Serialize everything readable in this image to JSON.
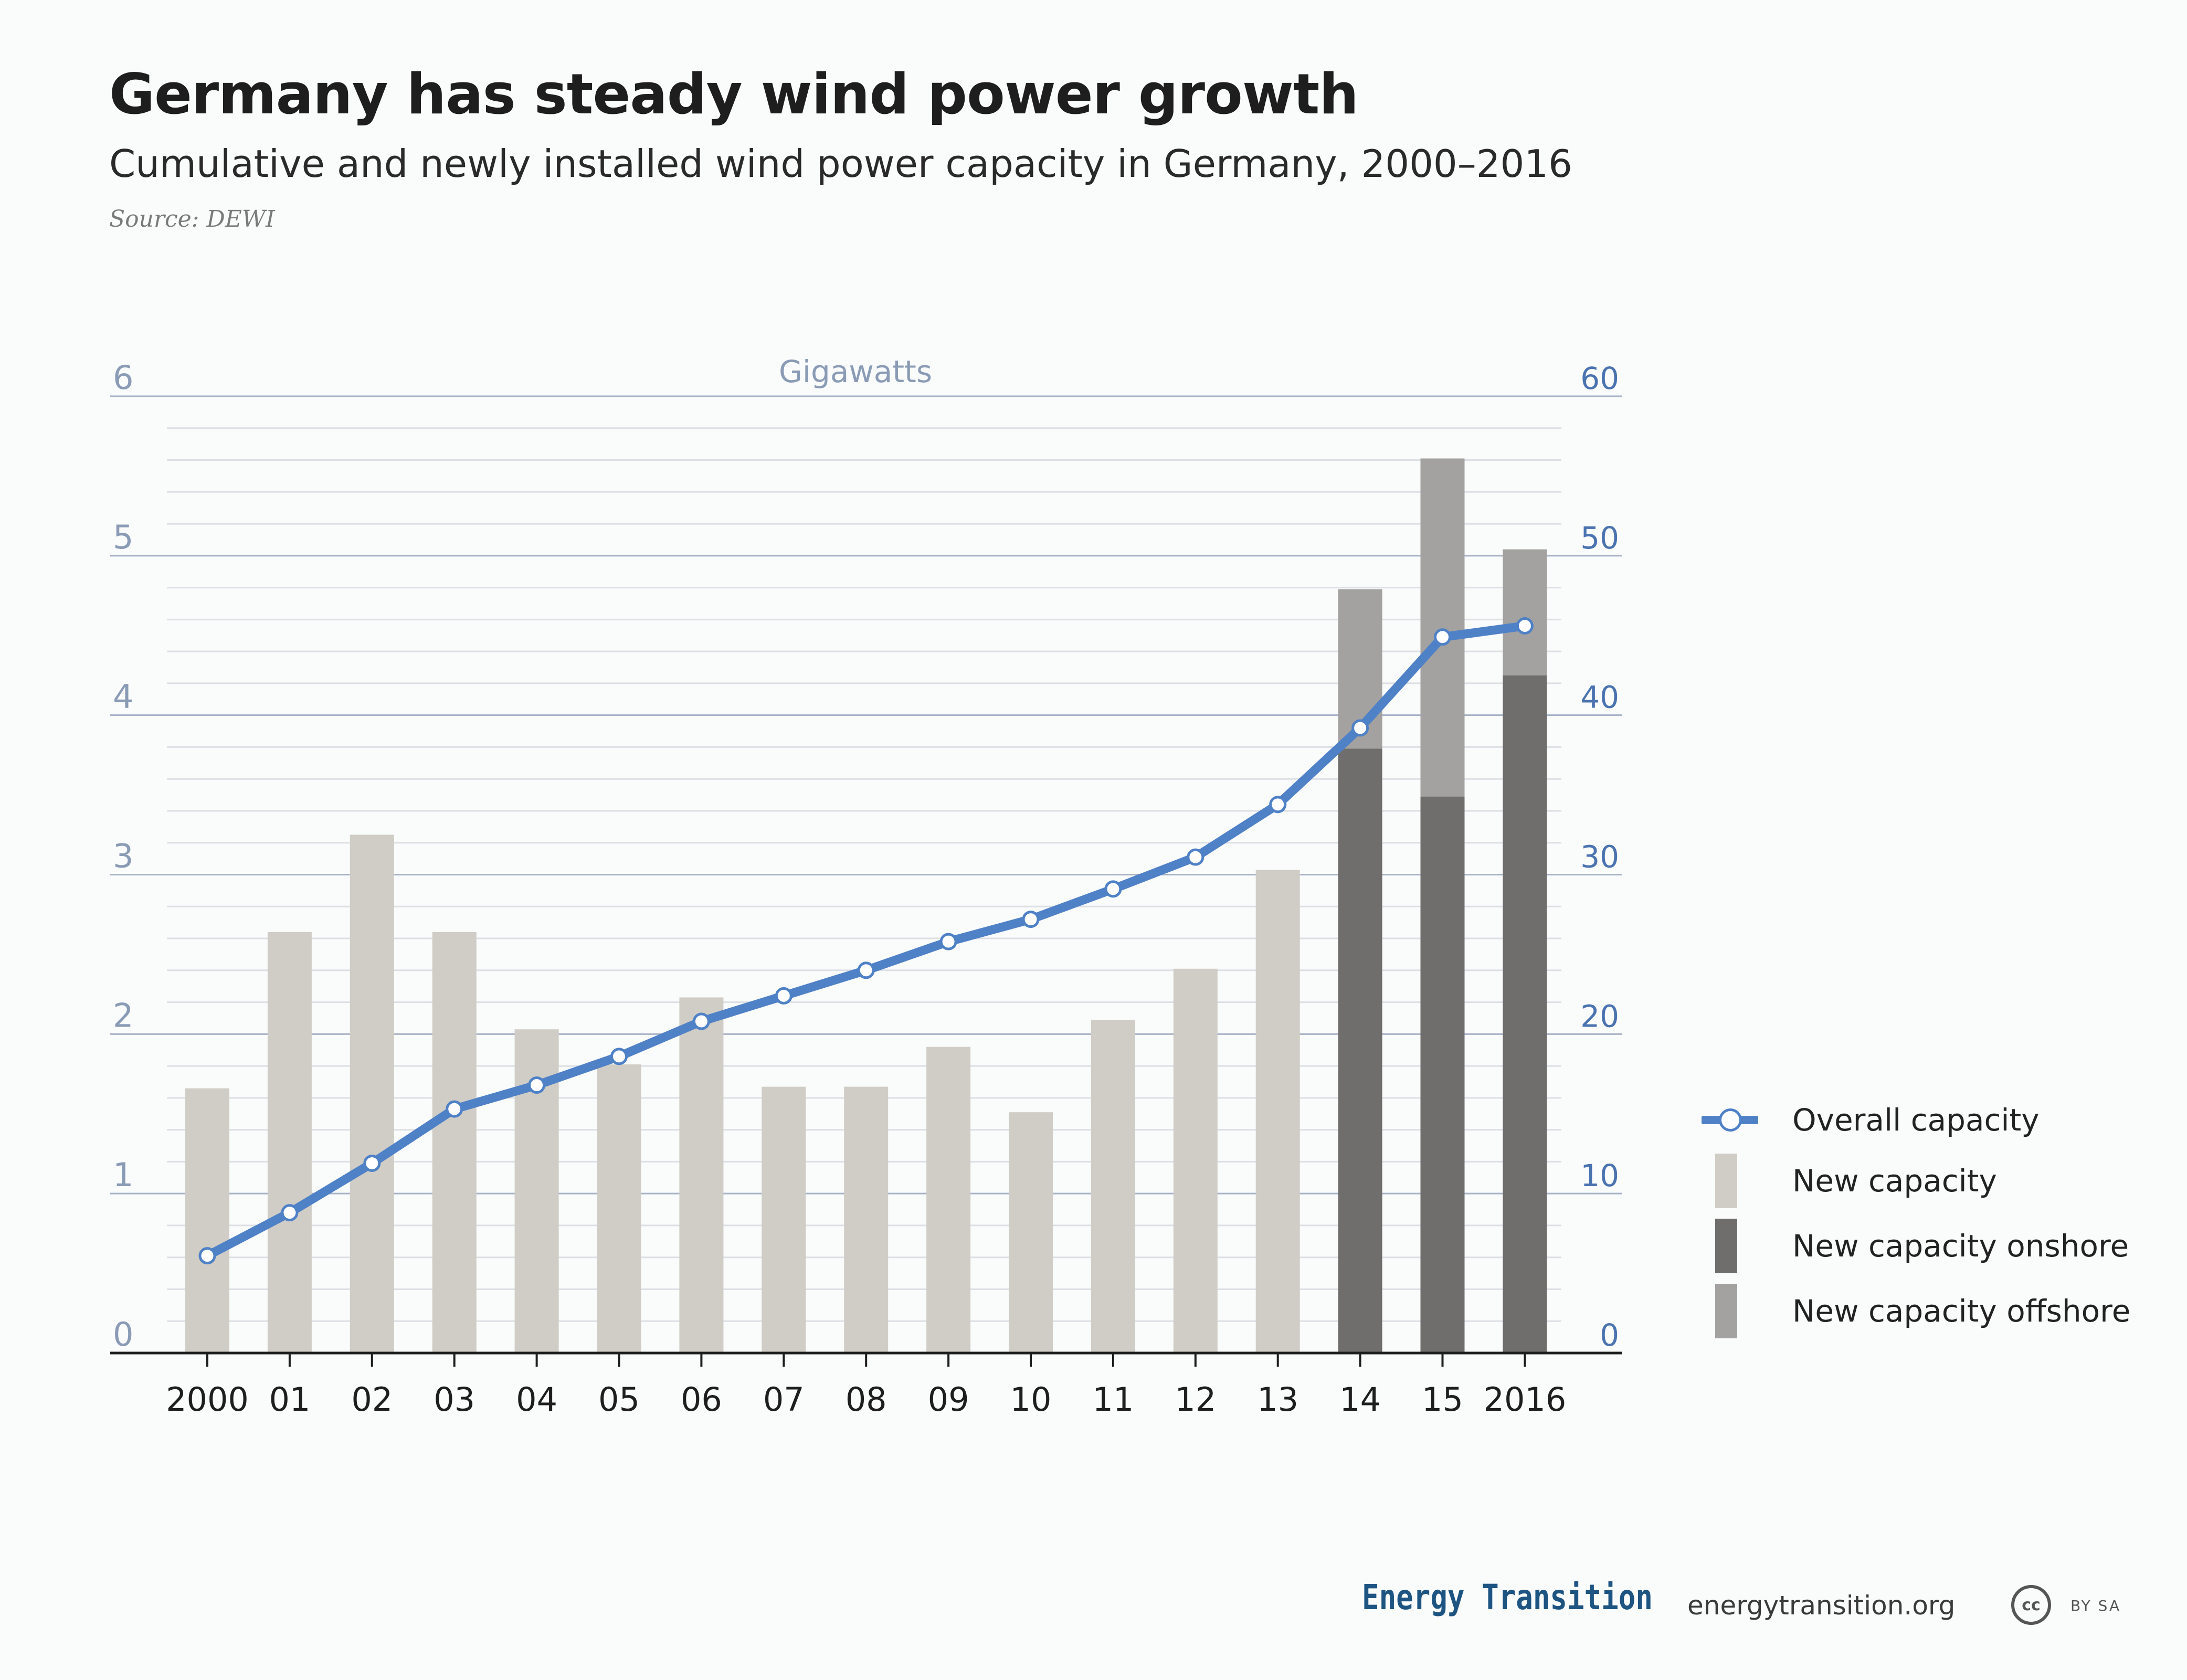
{
  "title": "Germany has steady wind power growth",
  "subtitle": "Cumulative and newly installed wind power capacity in Germany, 2000–2016",
  "source": "Source: DEWI",
  "legend": {
    "overall": "Overall capacity",
    "new": "New capacity",
    "onshore": "New capacity onshore",
    "offshore": "New capacity offshore"
  },
  "footer": {
    "brand": "Energy Transition",
    "site": "energytransition.org",
    "cc": "cc",
    "license": "BY SA"
  },
  "colors": {
    "new": "#d0cdc6",
    "onshore": "#6f6e6c",
    "offshore": "#a3a2a0",
    "line": "#4f81c7",
    "left_axis_text": "#8a9bb5",
    "right_axis_text": "#4a73b0"
  },
  "chart_data": {
    "type": "bar",
    "unit_label": "Gigawatts",
    "x_tick_labels": [
      "2000",
      "01",
      "02",
      "03",
      "04",
      "05",
      "06",
      "07",
      "08",
      "09",
      "10",
      "11",
      "12",
      "13",
      "14",
      "15",
      "2016"
    ],
    "y_left": {
      "range": [
        0,
        6
      ],
      "ticks": [
        "0",
        "1",
        "2",
        "3",
        "4",
        "5",
        "6"
      ]
    },
    "y_right": {
      "range": [
        0,
        60
      ],
      "ticks": [
        "0",
        "10",
        "20",
        "30",
        "40",
        "50",
        "60"
      ]
    },
    "grid": true,
    "legend_position": "right",
    "series": [
      {
        "name": "New capacity",
        "axis": "left",
        "kind": "bar",
        "values": [
          1.66,
          2.64,
          3.25,
          2.64,
          2.03,
          1.81,
          2.23,
          1.67,
          1.67,
          1.92,
          1.51,
          2.09,
          2.41,
          3.03,
          null,
          null,
          null
        ]
      },
      {
        "name": "New capacity onshore",
        "axis": "left",
        "kind": "bar-stack",
        "values": [
          null,
          null,
          null,
          null,
          null,
          null,
          null,
          null,
          null,
          null,
          null,
          null,
          null,
          null,
          3.79,
          3.49,
          4.25
        ]
      },
      {
        "name": "New capacity offshore",
        "axis": "left",
        "kind": "bar-stack",
        "values": [
          null,
          null,
          null,
          null,
          null,
          null,
          null,
          null,
          null,
          null,
          null,
          null,
          null,
          null,
          1.0,
          2.12,
          0.79
        ]
      },
      {
        "name": "Overall capacity",
        "axis": "right",
        "kind": "line",
        "values": [
          6.1,
          8.8,
          11.9,
          15.3,
          16.8,
          18.6,
          20.8,
          22.4,
          24.0,
          25.8,
          27.2,
          29.1,
          31.1,
          34.4,
          39.2,
          44.9,
          45.6
        ]
      }
    ]
  }
}
